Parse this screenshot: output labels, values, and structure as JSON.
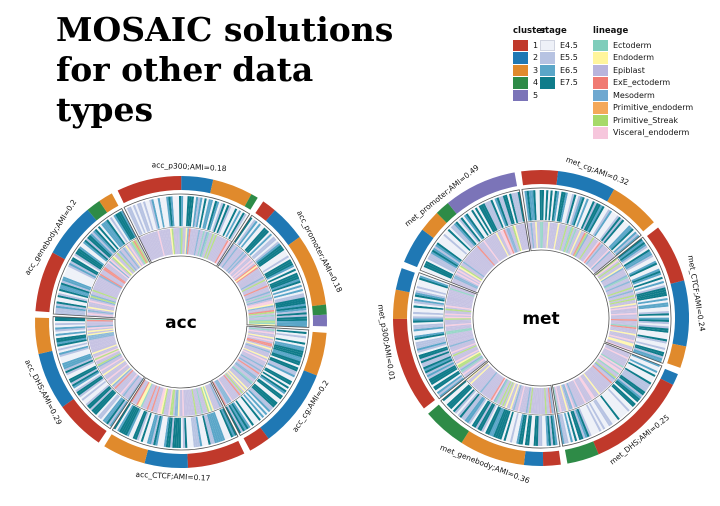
{
  "title": "MOSAIC solutions for other data types",
  "legends": {
    "cluster": {
      "heading": "cluster",
      "items": [
        {
          "label": "1",
          "color": "#C0392B"
        },
        {
          "label": "2",
          "color": "#1F78B4"
        },
        {
          "label": "3",
          "color": "#E08A2C"
        },
        {
          "label": "4",
          "color": "#2E8B47"
        },
        {
          "label": "5",
          "color": "#7B74B8"
        }
      ]
    },
    "stage": {
      "heading": "stage",
      "items": [
        {
          "label": "E4.5",
          "color": "#EEF1F8"
        },
        {
          "label": "E5.5",
          "color": "#B7C3E2"
        },
        {
          "label": "E6.5",
          "color": "#5AA6C8"
        },
        {
          "label": "E7.5",
          "color": "#0F7C8A"
        }
      ]
    },
    "lineage": {
      "heading": "lineage",
      "items": [
        {
          "label": "Ectoderm",
          "color": "#7FCDBB"
        },
        {
          "label": "Endoderm",
          "color": "#FFF59D"
        },
        {
          "label": "Epiblast",
          "color": "#B9B4DC"
        },
        {
          "label": "ExE_ectoderm",
          "color": "#F07A72"
        },
        {
          "label": "Mesoderm",
          "color": "#6FA8D0"
        },
        {
          "label": "Primitive_endoderm",
          "color": "#F4A85A"
        },
        {
          "label": "Primitive_Streak",
          "color": "#A6D96A"
        },
        {
          "label": "Visceral_endoderm",
          "color": "#F6C6DC"
        }
      ]
    }
  },
  "circles": [
    {
      "center_label": "acc",
      "sectors": [
        {
          "label": "acc_p300;AMI=0.18",
          "outer": [
            [
              1,
              0.45
            ],
            [
              2,
              0.22
            ],
            [
              3,
              0.28
            ],
            [
              4,
              0.05
            ]
          ]
        },
        {
          "label": "acc_promoter;AMI=0.18",
          "outer": [
            [
              1,
              0.1
            ],
            [
              2,
              0.25
            ],
            [
              3,
              0.5
            ],
            [
              4,
              0.07
            ],
            [
              5,
              0.08
            ]
          ]
        },
        {
          "label": "acc_cg;AMI=0.2",
          "outer": [
            [
              3,
              0.3
            ],
            [
              2,
              0.55
            ],
            [
              1,
              0.15
            ]
          ]
        },
        {
          "label": "acc_CTCF;AMI=0.17",
          "outer": [
            [
              1,
              0.4
            ],
            [
              2,
              0.3
            ],
            [
              3,
              0.3
            ]
          ]
        },
        {
          "label": "acc_DHS;AMI=0.29",
          "outer": [
            [
              1,
              0.35
            ],
            [
              2,
              0.4
            ],
            [
              3,
              0.25
            ]
          ]
        },
        {
          "label": "acc_genebody;AMI=0.2",
          "outer": [
            [
              1,
              0.42
            ],
            [
              2,
              0.38
            ],
            [
              4,
              0.1
            ],
            [
              3,
              0.1
            ]
          ]
        }
      ]
    },
    {
      "center_label": "met",
      "sectors": [
        {
          "label": "met_cg;AMI=0.32",
          "outer": [
            [
              1,
              0.25
            ],
            [
              2,
              0.4
            ],
            [
              3,
              0.35
            ]
          ]
        },
        {
          "label": "met_CTCF;AMI=0.24",
          "outer": [
            [
              1,
              0.4
            ],
            [
              2,
              0.45
            ],
            [
              3,
              0.15
            ]
          ]
        },
        {
          "label": "met_DHS;AMI=0.25",
          "outer": [
            [
              2,
              0.08
            ],
            [
              1,
              0.7
            ],
            [
              4,
              0.22
            ]
          ]
        },
        {
          "label": "met_genebody;AMI=0.36",
          "outer": [
            [
              1,
              0.12
            ],
            [
              2,
              0.13
            ],
            [
              3,
              0.45
            ],
            [
              4,
              0.3
            ]
          ]
        },
        {
          "label": "met_p300;AMI=0.01",
          "outer": [
            [
              1,
              0.65
            ],
            [
              3,
              0.2
            ],
            [
              2,
              0.15
            ]
          ]
        },
        {
          "label": "met_promoter;AMI=0.49",
          "outer": [
            [
              2,
              0.25
            ],
            [
              3,
              0.15
            ],
            [
              4,
              0.1
            ],
            [
              5,
              0.5
            ]
          ]
        }
      ]
    }
  ]
}
